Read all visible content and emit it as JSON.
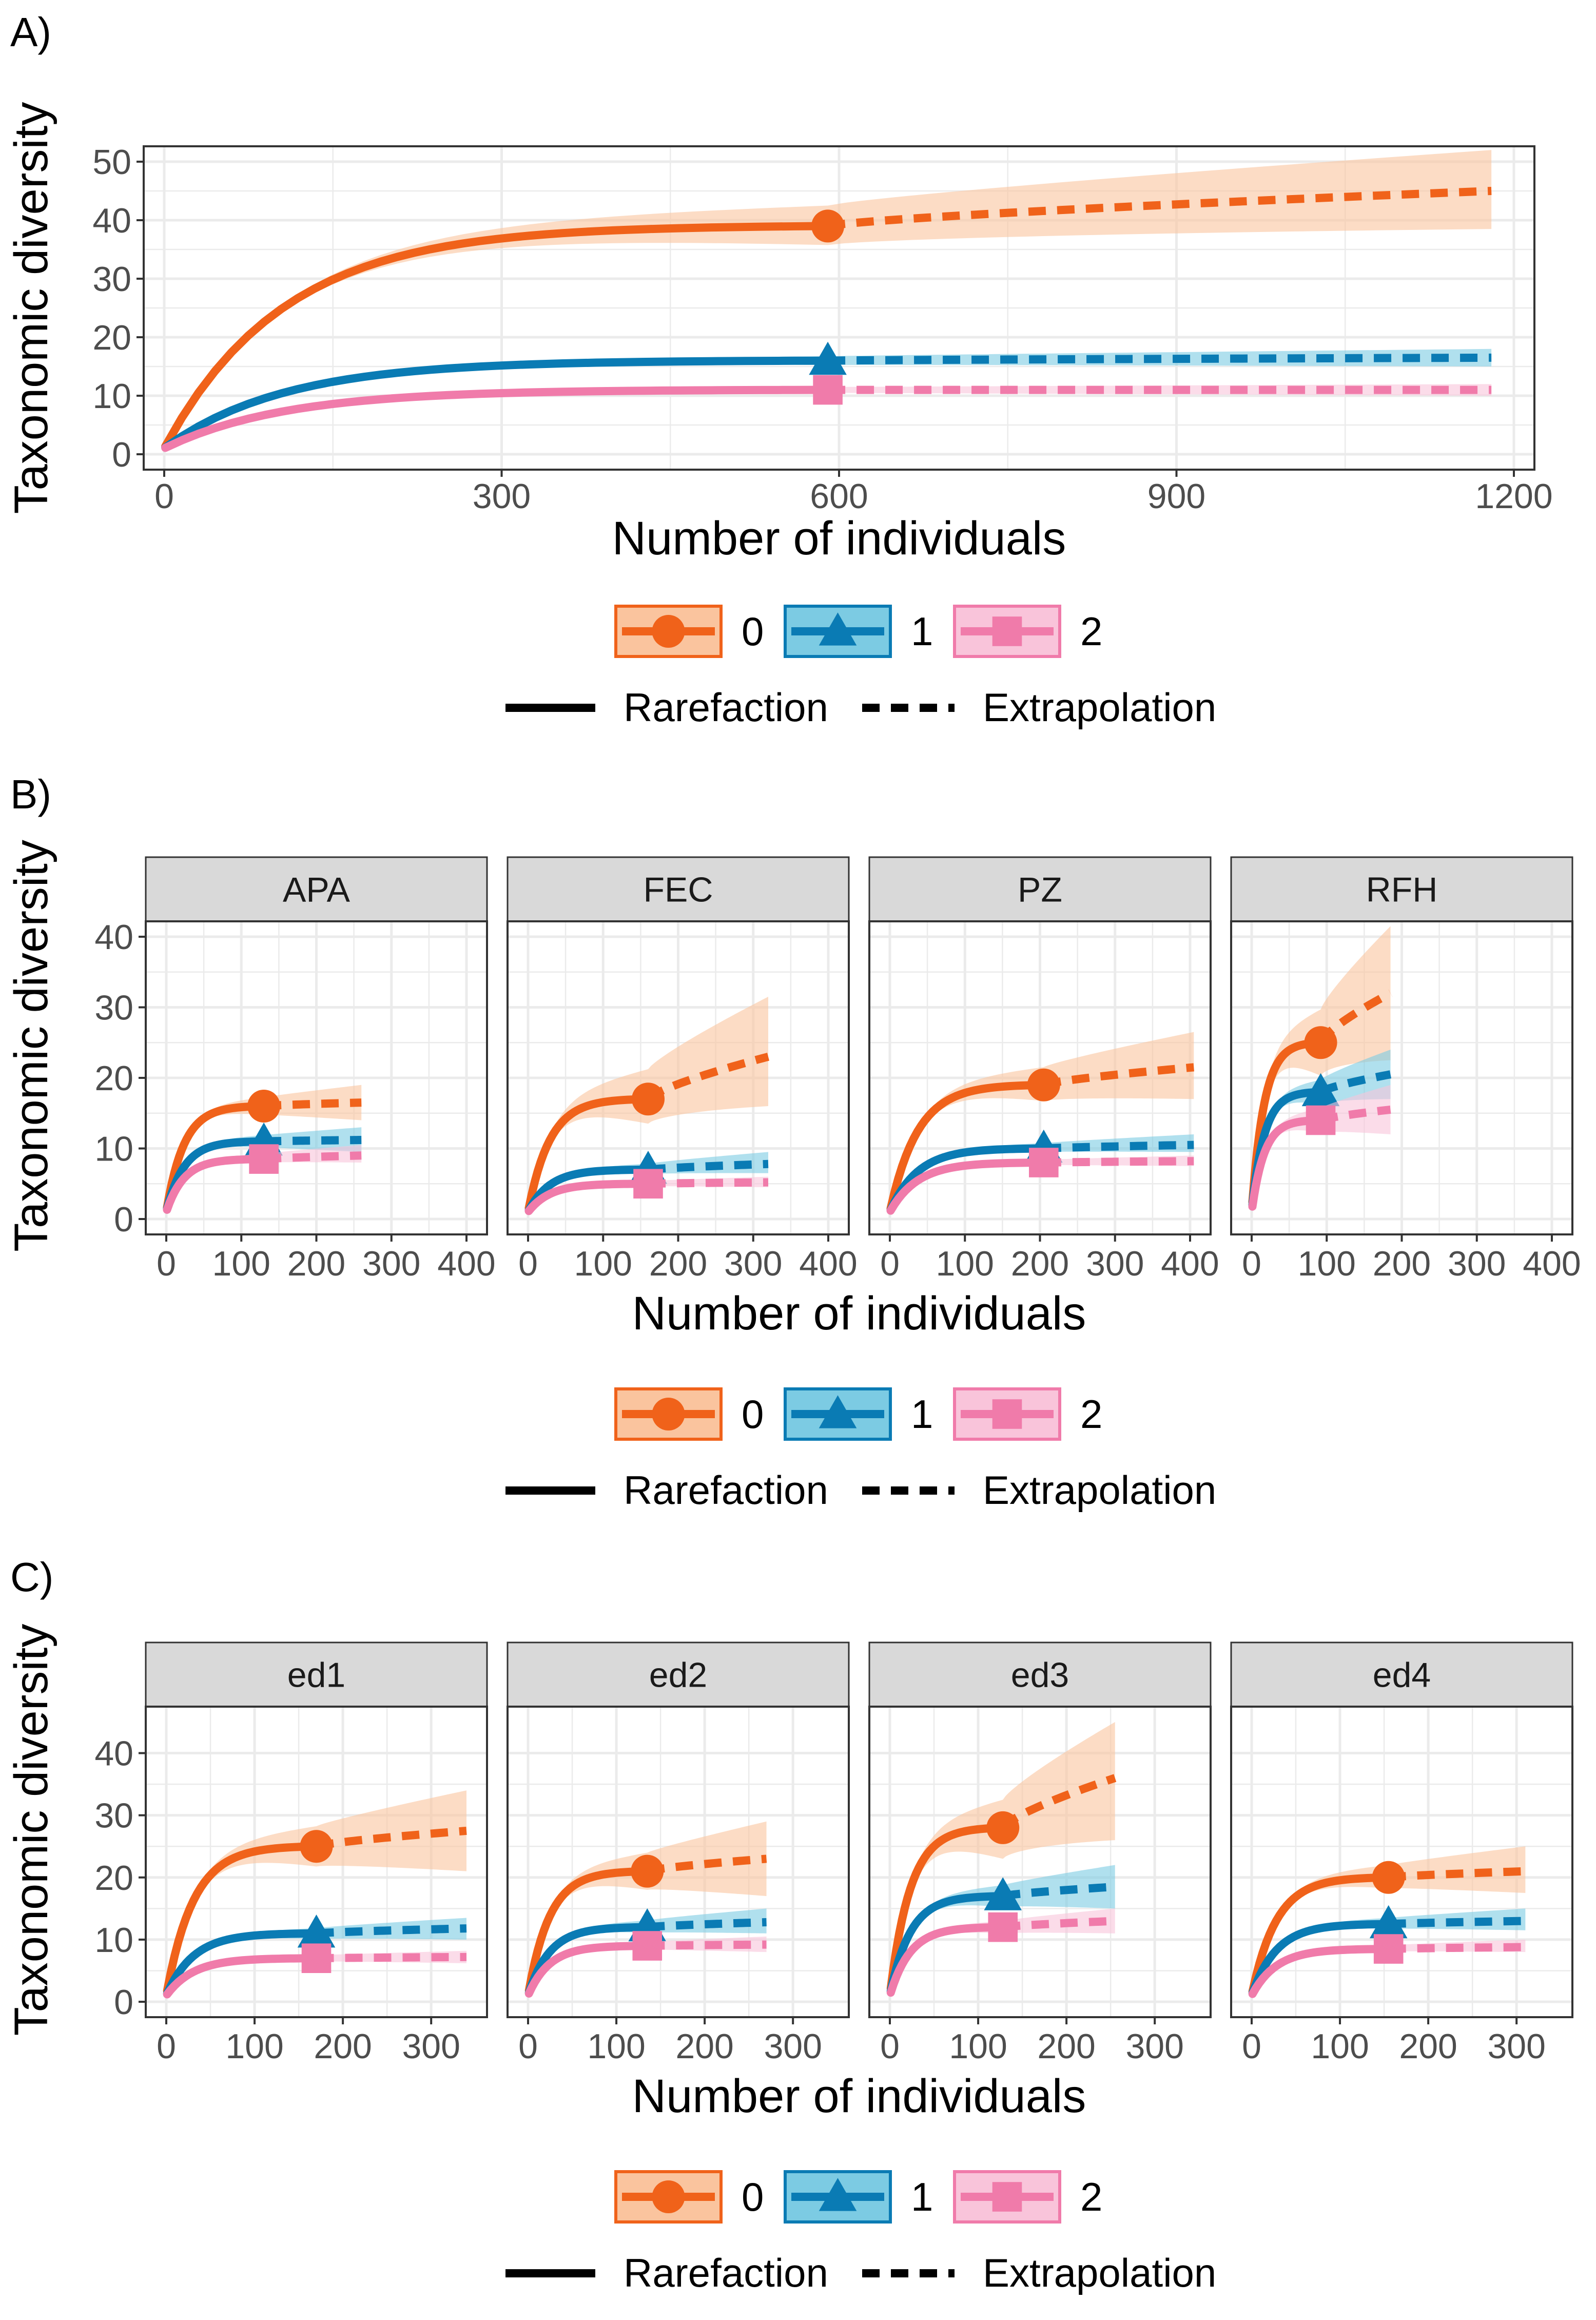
{
  "colors": {
    "order0": "#F0621A",
    "order1": "#0A7BB4",
    "order2": "#F07BAA",
    "band0": "#FAC49E",
    "band1": "#7CCBE3",
    "band2": "#F9C4DA",
    "grid": "#EBEBEB",
    "strip_bg": "#D9D9D9"
  },
  "chart_data": [
    {
      "label": "A)",
      "type": "line",
      "xlabel": "Number of individuals",
      "ylabel": "Taxonomic diversity",
      "xlim": [
        0,
        1200
      ],
      "ylim": [
        0,
        50
      ],
      "xticks": [
        "0",
        "300",
        "600",
        "900",
        "1200"
      ],
      "yticks": [
        "0",
        "10",
        "20",
        "30",
        "40",
        "50"
      ],
      "legend_orders": [
        "0",
        "1",
        "2"
      ],
      "legend_methods": [
        "Rarefaction",
        "Extrapolation"
      ],
      "facets": [
        {
          "name": "",
          "series": [
            {
              "order": "0",
              "n_obs": 590,
              "obs": 39,
              "n_max": 1180,
              "est_end": 45,
              "lo_end": 38.5,
              "hi_end": 52
            },
            {
              "order": "1",
              "n_obs": 590,
              "obs": 16,
              "n_max": 1180,
              "est_end": 16.5,
              "lo_end": 15,
              "hi_end": 18
            },
            {
              "order": "2",
              "n_obs": 590,
              "obs": 11,
              "n_max": 1180,
              "est_end": 11,
              "lo_end": 10,
              "hi_end": 12
            }
          ]
        }
      ]
    },
    {
      "label": "B)",
      "type": "line",
      "xlabel": "Number of individuals",
      "ylabel": "Taxonomic diversity",
      "xlim": [
        0,
        400
      ],
      "ylim": [
        0,
        40
      ],
      "xticks": [
        "0",
        "100",
        "200",
        "300",
        "400"
      ],
      "yticks": [
        "0",
        "10",
        "20",
        "30",
        "40"
      ],
      "legend_orders": [
        "0",
        "1",
        "2"
      ],
      "legend_methods": [
        "Rarefaction",
        "Extrapolation"
      ],
      "facets": [
        {
          "name": "APA",
          "series": [
            {
              "order": "0",
              "n_obs": 130,
              "obs": 16,
              "n_max": 260,
              "est_end": 16.5,
              "lo_end": 14,
              "hi_end": 19
            },
            {
              "order": "1",
              "n_obs": 130,
              "obs": 11,
              "n_max": 260,
              "est_end": 11.2,
              "lo_end": 9.5,
              "hi_end": 13
            },
            {
              "order": "2",
              "n_obs": 130,
              "obs": 8.5,
              "n_max": 260,
              "est_end": 9,
              "lo_end": 8,
              "hi_end": 10.5
            }
          ]
        },
        {
          "name": "FEC",
          "series": [
            {
              "order": "0",
              "n_obs": 160,
              "obs": 17,
              "n_max": 320,
              "est_end": 23,
              "lo_end": 16,
              "hi_end": 31.5
            },
            {
              "order": "1",
              "n_obs": 160,
              "obs": 7,
              "n_max": 320,
              "est_end": 7.8,
              "lo_end": 6.5,
              "hi_end": 9.5
            },
            {
              "order": "2",
              "n_obs": 160,
              "obs": 5,
              "n_max": 320,
              "est_end": 5.2,
              "lo_end": 4.5,
              "hi_end": 6
            }
          ]
        },
        {
          "name": "PZ",
          "series": [
            {
              "order": "0",
              "n_obs": 205,
              "obs": 19,
              "n_max": 405,
              "est_end": 21.5,
              "lo_end": 17,
              "hi_end": 26.5
            },
            {
              "order": "1",
              "n_obs": 205,
              "obs": 10,
              "n_max": 405,
              "est_end": 10.5,
              "lo_end": 9.5,
              "hi_end": 12
            },
            {
              "order": "2",
              "n_obs": 205,
              "obs": 8,
              "n_max": 405,
              "est_end": 8.2,
              "lo_end": 7.5,
              "hi_end": 9
            }
          ]
        },
        {
          "name": "RFH",
          "series": [
            {
              "order": "0",
              "n_obs": 92,
              "obs": 25,
              "n_max": 185,
              "est_end": 32,
              "lo_end": 22.5,
              "hi_end": 41.5
            },
            {
              "order": "1",
              "n_obs": 92,
              "obs": 18,
              "n_max": 185,
              "est_end": 20.5,
              "lo_end": 17,
              "hi_end": 24
            },
            {
              "order": "2",
              "n_obs": 92,
              "obs": 14,
              "n_max": 185,
              "est_end": 15.5,
              "lo_end": 12,
              "hi_end": 19
            }
          ]
        }
      ]
    },
    {
      "label": "C)",
      "type": "line",
      "xlabel": "Number of individuals",
      "ylabel": "Taxonomic diversity",
      "xlim": [
        0,
        340
      ],
      "ylim": [
        0,
        45
      ],
      "xticks": [
        "0",
        "100",
        "200",
        "300"
      ],
      "yticks": [
        "0",
        "10",
        "20",
        "30",
        "40"
      ],
      "legend_orders": [
        "0",
        "1",
        "2"
      ],
      "legend_methods": [
        "Rarefaction",
        "Extrapolation"
      ],
      "facets": [
        {
          "name": "ed1",
          "series": [
            {
              "order": "0",
              "n_obs": 170,
              "obs": 25,
              "n_max": 340,
              "est_end": 27.5,
              "lo_end": 21,
              "hi_end": 34
            },
            {
              "order": "1",
              "n_obs": 170,
              "obs": 11,
              "n_max": 340,
              "est_end": 11.8,
              "lo_end": 10,
              "hi_end": 13.5
            },
            {
              "order": "2",
              "n_obs": 170,
              "obs": 7,
              "n_max": 340,
              "est_end": 7.2,
              "lo_end": 6.2,
              "hi_end": 8.2
            }
          ]
        },
        {
          "name": "ed2",
          "series": [
            {
              "order": "0",
              "n_obs": 135,
              "obs": 21,
              "n_max": 270,
              "est_end": 23,
              "lo_end": 17,
              "hi_end": 29
            },
            {
              "order": "1",
              "n_obs": 135,
              "obs": 12,
              "n_max": 270,
              "est_end": 12.8,
              "lo_end": 11,
              "hi_end": 15
            },
            {
              "order": "2",
              "n_obs": 135,
              "obs": 9,
              "n_max": 270,
              "est_end": 9.2,
              "lo_end": 8,
              "hi_end": 10.5
            }
          ]
        },
        {
          "name": "ed3",
          "series": [
            {
              "order": "0",
              "n_obs": 128,
              "obs": 28,
              "n_max": 255,
              "est_end": 36,
              "lo_end": 26,
              "hi_end": 45
            },
            {
              "order": "1",
              "n_obs": 128,
              "obs": 17,
              "n_max": 255,
              "est_end": 18.5,
              "lo_end": 15,
              "hi_end": 22
            },
            {
              "order": "2",
              "n_obs": 128,
              "obs": 12,
              "n_max": 255,
              "est_end": 13,
              "lo_end": 11,
              "hi_end": 15
            }
          ]
        },
        {
          "name": "ed4",
          "series": [
            {
              "order": "0",
              "n_obs": 155,
              "obs": 20,
              "n_max": 310,
              "est_end": 21,
              "lo_end": 17.5,
              "hi_end": 25
            },
            {
              "order": "1",
              "n_obs": 155,
              "obs": 12.5,
              "n_max": 310,
              "est_end": 13,
              "lo_end": 11.5,
              "hi_end": 15
            },
            {
              "order": "2",
              "n_obs": 155,
              "obs": 8.5,
              "n_max": 310,
              "est_end": 8.8,
              "lo_end": 8,
              "hi_end": 10
            }
          ]
        }
      ]
    }
  ]
}
